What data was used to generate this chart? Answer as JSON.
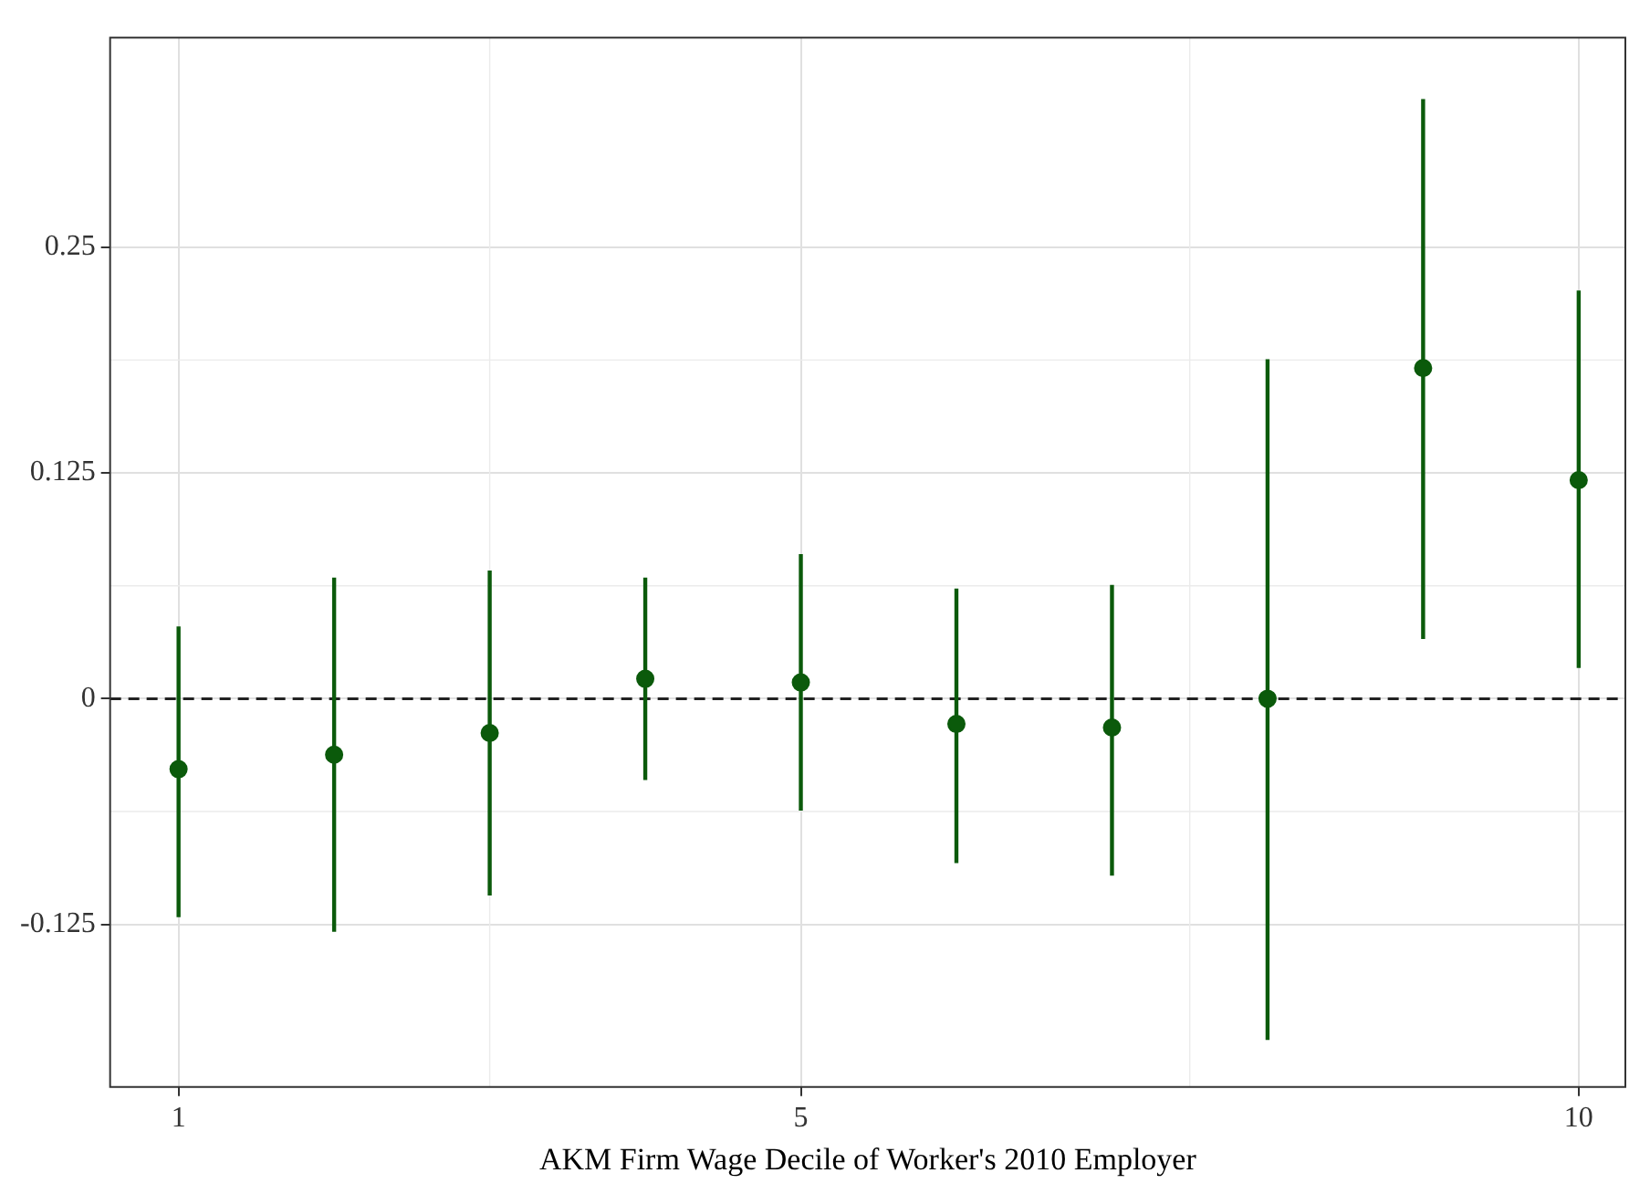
{
  "chart_data": {
    "type": "scatter",
    "xlabel": "AKM Firm Wage Decile of Worker's 2010 Employer",
    "x": [
      1,
      2,
      3,
      4,
      5,
      6,
      7,
      8,
      9,
      10
    ],
    "series": [
      {
        "color": "#0b5a0b",
        "values": [
          -0.039,
          -0.031,
          -0.019,
          0.011,
          0.009,
          -0.014,
          -0.016,
          0,
          0.183,
          0.121
        ],
        "errors": [
          [
            -0.121,
            0.04
          ],
          [
            -0.129,
            0.067
          ],
          [
            -0.109,
            0.071
          ],
          [
            -0.045,
            0.067
          ],
          [
            -0.062,
            0.08
          ],
          [
            -0.091,
            0.061
          ],
          [
            -0.098,
            0.063
          ],
          [
            -0.189,
            0.188
          ],
          [
            0.033,
            0.332
          ],
          [
            0.017,
            0.226
          ]
        ]
      }
    ],
    "xlim": [
      0.56,
      10.3
    ],
    "xticks": [
      1,
      5,
      10
    ],
    "ylim": [
      -0.215,
      0.366
    ],
    "yticks": [
      -0.125,
      0,
      0.125,
      0.25
    ],
    "ref_lines": [
      {
        "axis": "y",
        "value": 0,
        "line_style": "dashed",
        "color": "#222222"
      }
    ],
    "grid": true,
    "legend": false,
    "marker": "circle"
  }
}
